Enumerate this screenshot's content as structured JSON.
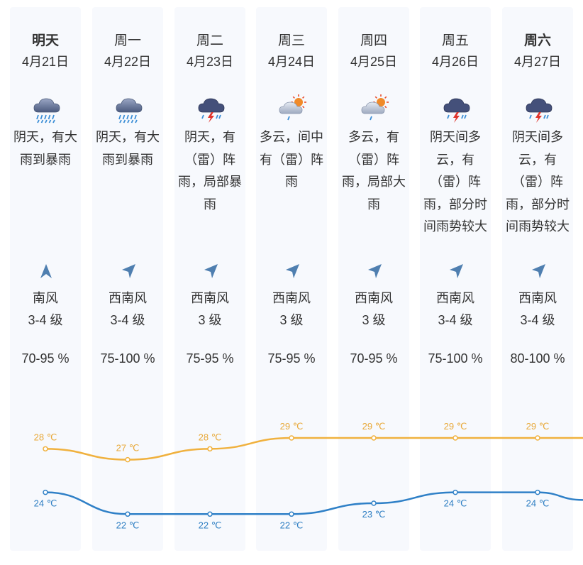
{
  "days": [
    {
      "name": "明天",
      "bold": true,
      "date": "4月21日",
      "icon": "heavy-rain-icon",
      "desc": [
        "阴天，有大",
        "雨到暴雨"
      ],
      "wind_icon": "wind-south-icon",
      "wind_dir": "南风",
      "wind_level": "3-4 级",
      "humidity": "70-95 %"
    },
    {
      "name": "周一",
      "bold": false,
      "date": "4月22日",
      "icon": "heavy-rain-icon",
      "desc": [
        "阴天，有大",
        "雨到暴雨"
      ],
      "wind_icon": "wind-southwest-icon",
      "wind_dir": "西南风",
      "wind_level": "3-4 级",
      "humidity": "75-100 %"
    },
    {
      "name": "周二",
      "bold": false,
      "date": "4月23日",
      "icon": "thunderstorm-icon",
      "desc": [
        "阴天，有",
        "（雷）阵",
        "雨，局部暴",
        "雨"
      ],
      "wind_icon": "wind-southwest-icon",
      "wind_dir": "西南风",
      "wind_level": "3 级",
      "humidity": "75-95 %"
    },
    {
      "name": "周三",
      "bold": false,
      "date": "4月24日",
      "icon": "sun-cloud-rain-icon",
      "desc": [
        "多云，间中",
        "有（雷）阵",
        "雨"
      ],
      "wind_icon": "wind-southwest-icon",
      "wind_dir": "西南风",
      "wind_level": "3 级",
      "humidity": "75-95 %"
    },
    {
      "name": "周四",
      "bold": false,
      "date": "4月25日",
      "icon": "sun-cloud-rain-icon",
      "desc": [
        "多云，有",
        "（雷）阵",
        "雨，局部大",
        "雨"
      ],
      "wind_icon": "wind-southwest-icon",
      "wind_dir": "西南风",
      "wind_level": "3 级",
      "humidity": "70-95 %"
    },
    {
      "name": "周五",
      "bold": false,
      "date": "4月26日",
      "icon": "thunderstorm-icon",
      "desc": [
        "阴天间多",
        "云，有",
        "（雷）阵",
        "雨，部分时",
        "间雨势较大"
      ],
      "wind_icon": "wind-southwest-icon",
      "wind_dir": "西南风",
      "wind_level": "3-4 级",
      "humidity": "75-100 %"
    },
    {
      "name": "周六",
      "bold": true,
      "date": "4月27日",
      "icon": "thunderstorm-icon",
      "desc": [
        "阴天间多",
        "云，有",
        "（雷）阵",
        "雨，部分时",
        "间雨势较大"
      ],
      "wind_icon": "wind-southwest-icon",
      "wind_dir": "西南风",
      "wind_level": "3-4 级",
      "humidity": "80-100 %"
    }
  ],
  "chart_data": {
    "type": "line",
    "categories": [
      "4月21日",
      "4月22日",
      "4月23日",
      "4月24日",
      "4月25日",
      "4月26日",
      "4月27日"
    ],
    "series": [
      {
        "values": [
          28,
          27,
          28,
          29,
          29,
          29,
          29
        ],
        "labels": [
          "28 ℃",
          "27 ℃",
          "28 ℃",
          "29 ℃",
          "29 ℃",
          "29 ℃",
          "29 ℃"
        ],
        "color": "#f0b13e"
      },
      {
        "values": [
          24,
          22,
          22,
          22,
          23,
          24,
          24
        ],
        "labels": [
          "24 ℃",
          "22 ℃",
          "22 ℃",
          "22 ℃",
          "23 ℃",
          "24 ℃",
          "24 ℃"
        ],
        "color": "#2f80c7"
      }
    ]
  },
  "colors": {
    "high": "#f0b13e",
    "low": "#2f80c7",
    "column_bg": "#f7f9fd",
    "wind_arrow": "#4f7fb0"
  }
}
